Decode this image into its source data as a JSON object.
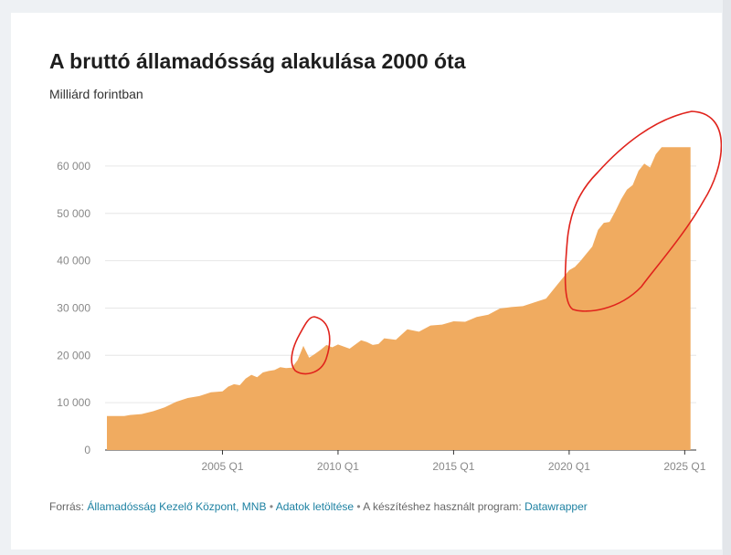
{
  "title": "A bruttó államadósság alakulása 2000 óta",
  "subtitle": "Milliárd forintban",
  "footer": {
    "source_label": "Forrás:",
    "source_text": "Államadósság Kezelő Központ, MNB",
    "separator1": "•",
    "download_text": "Adatok letöltése",
    "separator2": "•",
    "program_text": "A készítéshez használt program:",
    "program_link": "Datawrapper"
  },
  "colors": {
    "area": "#f0ab60",
    "annotation": "#e0231c",
    "grid": "#e6e6e6",
    "tick_text": "#888888"
  },
  "chart_data": {
    "type": "area",
    "title": "A bruttó államadósság alakulása 2000 óta",
    "subtitle": "Milliárd forintban",
    "xlabel": "",
    "ylabel": "",
    "ylim": [
      0,
      65000
    ],
    "xlim": [
      2000.0,
      2025.5
    ],
    "y_ticks": [
      {
        "value": 0,
        "label": "0"
      },
      {
        "value": 10000,
        "label": "10 000"
      },
      {
        "value": 20000,
        "label": "20 000"
      },
      {
        "value": 30000,
        "label": "30 000"
      },
      {
        "value": 40000,
        "label": "40 000"
      },
      {
        "value": 50000,
        "label": "50 000"
      },
      {
        "value": 60000,
        "label": "60 000"
      }
    ],
    "x_ticks": [
      {
        "value": 2005.0,
        "label": "2005 Q1"
      },
      {
        "value": 2010.0,
        "label": "2010 Q1"
      },
      {
        "value": 2015.0,
        "label": "2015 Q1"
      },
      {
        "value": 2020.0,
        "label": "2020 Q1"
      },
      {
        "value": 2025.0,
        "label": "2025 Q1"
      }
    ],
    "grid": true,
    "series": [
      {
        "x": [
          2000.0,
          2000.75,
          2001.0,
          2001.5,
          2002.0,
          2002.5,
          2003.0,
          2003.5,
          2004.0,
          2004.5,
          2005.0,
          2005.25,
          2005.5,
          2005.75,
          2006.0,
          2006.25,
          2006.5,
          2006.75,
          2007.0,
          2007.25,
          2007.5,
          2007.75,
          2008.0,
          2008.25,
          2008.5,
          2008.75,
          2009.0,
          2009.25,
          2009.5,
          2009.75,
          2010.0,
          2010.5,
          2011.0,
          2011.25,
          2011.5,
          2011.75,
          2012.0,
          2012.5,
          2013.0,
          2013.5,
          2014.0,
          2014.5,
          2015.0,
          2015.5,
          2016.0,
          2016.5,
          2017.0,
          2017.5,
          2018.0,
          2018.5,
          2019.0,
          2019.5,
          2020.0,
          2020.25,
          2020.5,
          2020.75,
          2021.0,
          2021.25,
          2021.5,
          2021.75,
          2022.0,
          2022.25,
          2022.5,
          2022.75,
          2023.0,
          2023.25,
          2023.5,
          2023.75,
          2024.0,
          2024.25,
          2024.5,
          2024.75,
          2025.0,
          2025.25
        ],
        "values": [
          7200,
          7200,
          7400,
          7600,
          8200,
          9000,
          10200,
          11000,
          11400,
          12200,
          12400,
          13400,
          13900,
          13700,
          15100,
          15900,
          15400,
          16400,
          16700,
          16900,
          17500,
          17300,
          17400,
          19000,
          22000,
          19500,
          20300,
          21200,
          22200,
          21700,
          22300,
          21400,
          23200,
          22800,
          22200,
          22400,
          23600,
          23300,
          25500,
          25000,
          26300,
          26500,
          27200,
          27100,
          28100,
          28600,
          29900,
          30200,
          30400,
          31200,
          32000,
          35000,
          38000,
          38700,
          40000,
          41500,
          43000,
          46500,
          48000,
          48200,
          50500,
          53000,
          55000,
          56000,
          59000,
          60500,
          59700,
          62500,
          64000,
          64000,
          64000,
          64000,
          64000,
          64000
        ]
      }
    ]
  }
}
